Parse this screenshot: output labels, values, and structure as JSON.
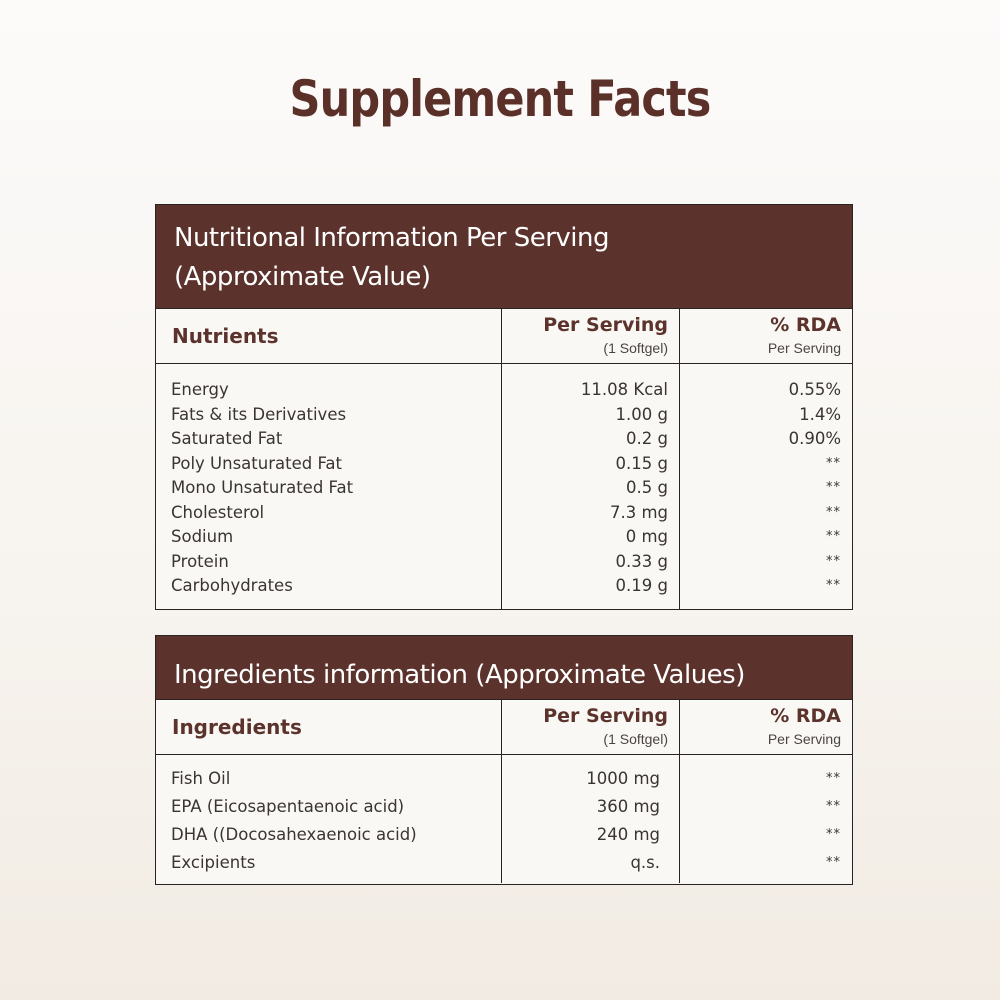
{
  "title": "Supplement Facts",
  "colors": {
    "brand_brown": "#5b322c",
    "text": "#3a3433",
    "background": "#f7f3ee"
  },
  "nutrition": {
    "header_line1": "Nutritional Information Per Serving",
    "header_line2": "(Approximate Value)",
    "columns": {
      "name": "Nutrients",
      "per_serving": "Per Serving",
      "per_serving_sub": "(1 Softgel)",
      "rda": "% RDA",
      "rda_sub": "Per Serving"
    },
    "rows": [
      {
        "name": "Energy",
        "amount": "11.08 Kcal",
        "rda": "0.55%"
      },
      {
        "name": "Fats & its Derivatives",
        "amount": "1.00 g",
        "rda": "1.4%"
      },
      {
        "name": "Saturated Fat",
        "amount": "0.2 g",
        "rda": "0.90%"
      },
      {
        "name": "Poly Unsaturated Fat",
        "amount": "0.15 g",
        "rda": "**"
      },
      {
        "name": "Mono Unsaturated Fat",
        "amount": "0.5 g",
        "rda": "**"
      },
      {
        "name": "Cholesterol",
        "amount": "7.3 mg",
        "rda": "**"
      },
      {
        "name": "Sodium",
        "amount": "0 mg",
        "rda": "**"
      },
      {
        "name": "Protein",
        "amount": "0.33 g",
        "rda": "**"
      },
      {
        "name": "Carbohydrates",
        "amount": "0.19 g",
        "rda": "**"
      }
    ]
  },
  "ingredients": {
    "header": "Ingredients information (Approximate Values)",
    "columns": {
      "name": "Ingredients",
      "per_serving": "Per Serving",
      "per_serving_sub": "(1 Softgel)",
      "rda": "% RDA",
      "rda_sub": "Per Serving"
    },
    "rows": [
      {
        "name": "Fish Oil",
        "amount": "1000 mg",
        "rda": "**"
      },
      {
        "name": "EPA (Eicosapentaenoic acid)",
        "amount": "360 mg",
        "rda": "**"
      },
      {
        "name": "DHA ((Docosahexaenoic acid)",
        "amount": "240 mg",
        "rda": "**"
      },
      {
        "name": "Excipients",
        "amount": "q.s.",
        "rda": "**"
      }
    ]
  }
}
